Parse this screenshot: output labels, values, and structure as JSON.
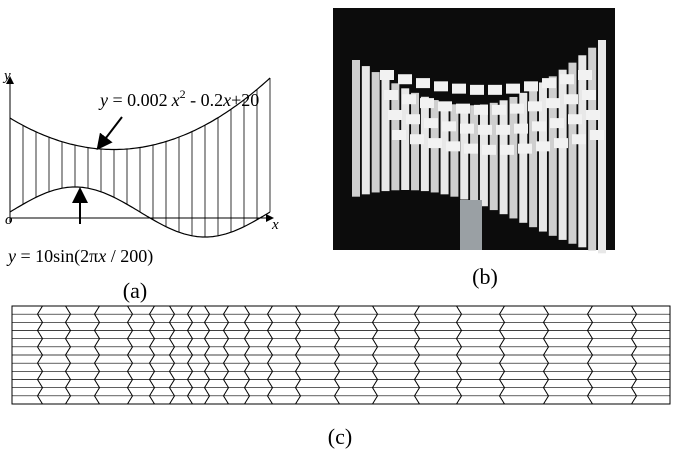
{
  "panel_a": {
    "axis_y": "y",
    "axis_x": "x",
    "origin": "o",
    "upper_equation": [
      "y",
      " = 0.002",
      "x",
      "2",
      " - 0.2",
      "x",
      "+20"
    ],
    "lower_equation": [
      "y",
      " = 10sin(2π",
      "x",
      " / 200)"
    ],
    "label": "(a)"
  },
  "panel_b": {
    "label": "(b)"
  },
  "panel_c": {
    "label": "(c)"
  }
}
